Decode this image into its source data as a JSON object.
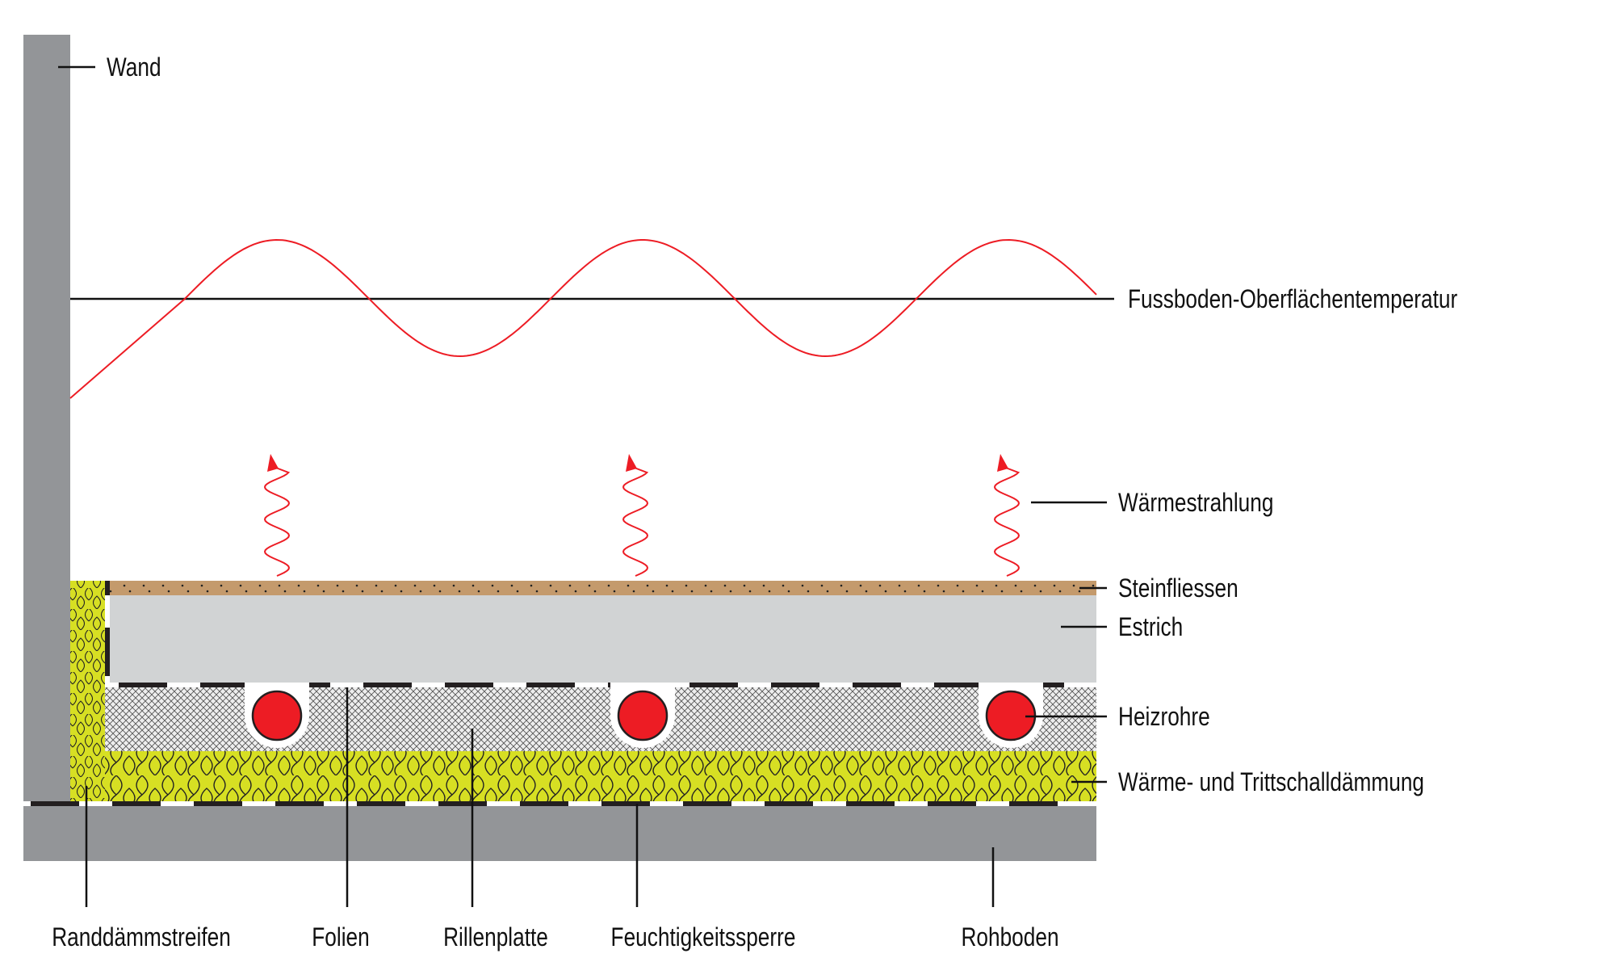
{
  "labels": {
    "wand": "Wand",
    "surface_temperature": "Fussboden-Oberflächentemperatur",
    "heat_radiation": "Wärmestrahlung",
    "tiles": "Steinfliessen",
    "screed": "Estrich",
    "pipes": "Heizrohre",
    "insulation": "Wärme- und Trittschalldämmung",
    "edge_strip": "Randdämmstreifen",
    "foils": "Folien",
    "groove_board": "Rillenplatte",
    "moisture_barrier": "Feuchtigkeitssperre",
    "subfloor": "Rohboden"
  },
  "colors": {
    "wall": "#939598",
    "screed": "#d1d3d4",
    "tiles": "#c49a6c",
    "insulation": "#d7df23",
    "pipe": "#ed1c24",
    "temperature_curve": "#ed1c24"
  }
}
